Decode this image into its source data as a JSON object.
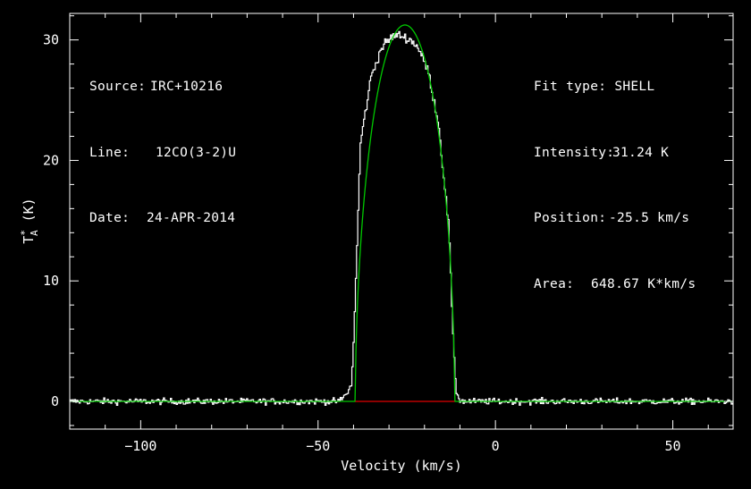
{
  "header_left": {
    "source_label": "Source:",
    "source_value": "IRC+10216",
    "line_label": "Line:",
    "line_value": "12CO(3-2)U",
    "date_label": "Date:",
    "date_value": "24-APR-2014"
  },
  "header_right": {
    "fit_label": "Fit type:",
    "fit_value": "SHELL",
    "intensity_label": "Intensity:",
    "intensity_value": "31.24 K",
    "position_label": "Position:",
    "position_value": "-25.5 km/s",
    "area_label": "Area:",
    "area_value": "648.67 K*km/s"
  },
  "colors": {
    "spectrum": "#ffffff",
    "fit": "#00c800",
    "baseline": "#e00000",
    "frame": "#ffffff",
    "background": "#000000"
  },
  "chart_data": {
    "type": "line",
    "xlabel": "Velocity (km/s)",
    "ylabel": "T*A (K)",
    "xlim": [
      -120,
      67
    ],
    "ylim": [
      -2.3,
      32.2
    ],
    "xticks": [
      -100,
      -50,
      0,
      50
    ],
    "yticks": [
      0,
      10,
      20,
      30
    ],
    "xtick_labels": [
      "−100",
      "−50",
      "0",
      "50"
    ],
    "ytick_labels": [
      "0",
      "10",
      "20",
      "30"
    ],
    "grid": false,
    "series": [
      {
        "role": "spectrum",
        "style": "histogram",
        "x_range": [
          -120,
          67
        ],
        "channel_width": 0.33,
        "noise_rms": 0.18,
        "x": [
          -120,
          -44,
          -42,
          -40.5,
          -39.5,
          -38,
          -35,
          -32,
          -29,
          -27,
          -25.5,
          -24,
          -22,
          -19,
          -16,
          -13,
          -12,
          -11,
          -10,
          -9,
          67
        ],
        "y": [
          0,
          0,
          0.6,
          1.4,
          8.5,
          21.5,
          27.0,
          29.4,
          30.3,
          30.4,
          30.2,
          30.0,
          29.5,
          27.5,
          23.0,
          14.0,
          5.5,
          0.8,
          0.1,
          0,
          0
        ]
      },
      {
        "role": "fit",
        "model": "SHELL",
        "x_range": [
          -120,
          67
        ],
        "peak": 31.24,
        "center": -25.5,
        "half_width": 14.0,
        "horn_ratio": 0.5
      },
      {
        "role": "baseline",
        "x": [
          -39.5,
          -11.5
        ],
        "y": [
          0,
          0
        ]
      }
    ]
  }
}
